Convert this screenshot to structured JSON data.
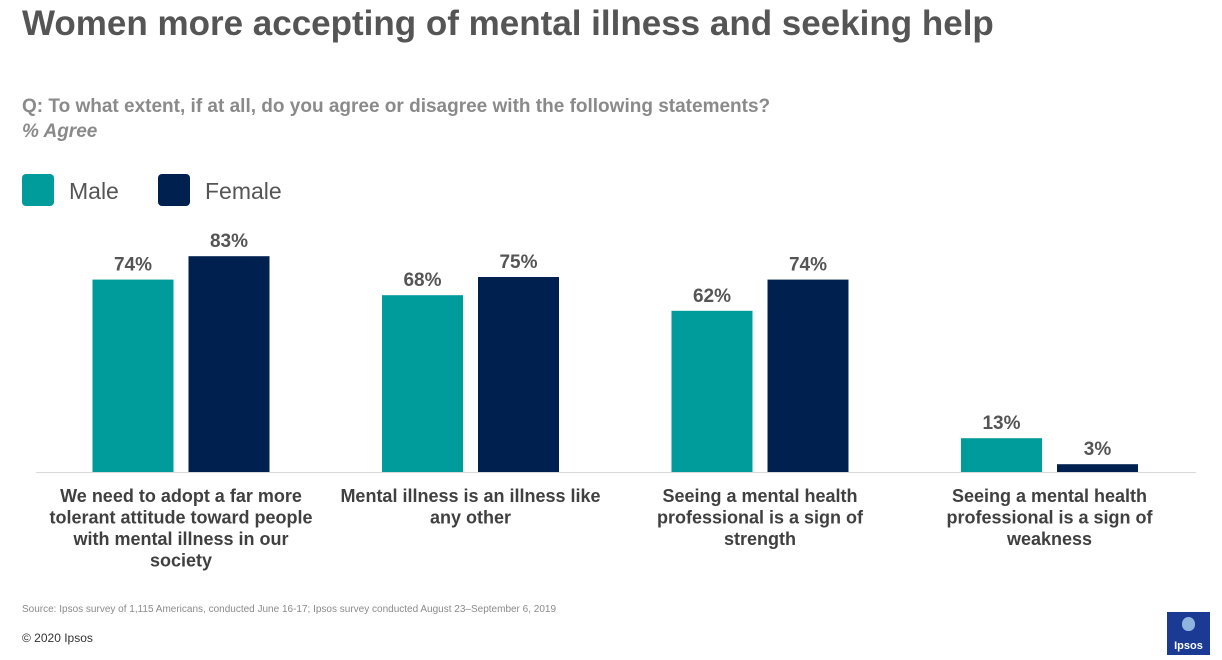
{
  "header": {
    "title": "Women more accepting of mental illness and seeking help",
    "question": "Q: To what extent, if at all, do you agree or disagree with the following statements?",
    "subtitle": "% Agree"
  },
  "colors": {
    "male": "#009b9b",
    "female": "#002050",
    "axis": "#d9d9d9",
    "text": "#555555",
    "category_text": "#404040"
  },
  "chart_data": {
    "type": "bar",
    "title": "Women more accepting of mental illness and seeking help",
    "subtitle": "% Agree",
    "categories": [
      "We need to adopt a far more tolerant attitude toward people with mental illness in our society",
      "Mental illness is an illness like any other",
      "Seeing a mental health professional is a sign of strength",
      "Seeing a mental health professional is a sign of weakness"
    ],
    "category_lines": [
      [
        "We need to adopt a far more",
        "tolerant attitude toward people",
        "with mental illness in our",
        "society"
      ],
      [
        "Mental illness is an illness like",
        "any other"
      ],
      [
        "Seeing a mental health",
        "professional is a sign of",
        "strength"
      ],
      [
        "Seeing a mental health",
        "professional is a sign of",
        "weakness"
      ]
    ],
    "series": [
      {
        "name": "Male",
        "values": [
          74,
          68,
          62,
          13
        ],
        "labels": [
          "74%",
          "68%",
          "62%",
          "13%"
        ]
      },
      {
        "name": "Female",
        "values": [
          83,
          75,
          74,
          3
        ],
        "labels": [
          "83%",
          "75%",
          "74%",
          "3%"
        ]
      }
    ],
    "unit": "%",
    "ylim": [
      0,
      100
    ],
    "grid": false,
    "legend_position": "top-left"
  },
  "footer": {
    "source": "Source: Ipsos survey of 1,115 Americans, conducted June 16-17; Ipsos survey conducted August 23–September 6, 2019",
    "copyright": "© 2020 Ipsos",
    "logo_text": "Ipsos"
  }
}
